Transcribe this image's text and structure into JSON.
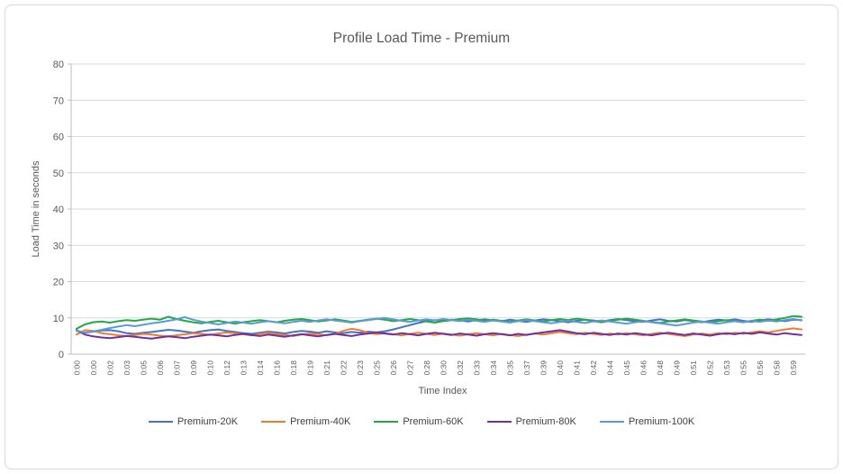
{
  "chart_data": {
    "type": "line",
    "title": "Profile Load Time - Premium",
    "xlabel": "Time Index",
    "ylabel": "Load Time in seconds",
    "ylim": [
      0,
      80
    ],
    "ytick_step": 10,
    "grid": true,
    "legend_position": "bottom",
    "label_every_n_points": 2,
    "x_tick_labels": [
      "0:00",
      "0:00",
      "0:02",
      "0:03",
      "0:05",
      "0:06",
      "0:07",
      "0:09",
      "0:10",
      "0:12",
      "0:13",
      "0:14",
      "0:16",
      "0:18",
      "0:19",
      "0:21",
      "0:22",
      "0:23",
      "0:25",
      "0:26",
      "0:27",
      "0:28",
      "0:30",
      "0:32",
      "0:33",
      "0:34",
      "0:35",
      "0:37",
      "0:39",
      "0:40",
      "0:41",
      "0:42",
      "0:44",
      "0:45",
      "0:46",
      "0:48",
      "0:49",
      "0:51",
      "0:52",
      "0:53",
      "0:55",
      "0:56",
      "0:58",
      "0:59"
    ],
    "colors": {
      "gridline": "#d9d9d9",
      "axis_line": "#bfbfbf",
      "tick_label": "#595959",
      "title": "#595959"
    },
    "series": [
      {
        "name": "Premium-20K",
        "color": "#4472C4",
        "values": [
          6.4,
          5.9,
          6.2,
          6.5,
          6.6,
          6.3,
          5.8,
          5.6,
          5.9,
          6.1,
          6.4,
          6.7,
          6.5,
          6.2,
          5.9,
          6.3,
          6.6,
          6.8,
          6.4,
          6.1,
          5.8,
          5.6,
          5.9,
          6.2,
          6.0,
          5.7,
          6.1,
          6.4,
          6.2,
          5.9,
          6.3,
          6.0,
          5.8,
          6.1,
          5.9,
          6.2,
          6.0,
          6.3,
          6.8,
          7.4,
          8.0,
          8.6,
          9.1,
          9.4,
          9.2,
          9.5,
          9.3,
          9.0,
          9.4,
          9.6,
          9.3,
          9.1,
          9.5,
          9.2,
          8.9,
          9.3,
          9.6,
          9.4,
          9.1,
          8.8,
          9.2,
          9.5,
          9.3,
          9.0,
          9.4,
          9.7,
          9.4,
          9.1,
          8.9,
          9.3,
          9.6,
          9.2,
          9.0,
          9.4,
          9.1,
          8.8,
          9.2,
          9.5,
          9.3,
          9.6,
          9.2,
          8.9,
          9.3,
          9.6,
          9.4,
          9.1,
          9.5,
          9.4
        ]
      },
      {
        "name": "Premium-40K",
        "color": "#ED7D31",
        "values": [
          5.4,
          6.6,
          6.4,
          5.8,
          5.5,
          5.2,
          5.0,
          5.3,
          5.6,
          5.4,
          5.1,
          4.9,
          5.2,
          5.5,
          5.8,
          5.6,
          5.3,
          5.7,
          6.0,
          5.8,
          5.5,
          5.2,
          5.6,
          5.9,
          5.6,
          5.3,
          5.0,
          5.4,
          5.7,
          5.5,
          5.2,
          5.6,
          6.4,
          7.0,
          6.6,
          5.9,
          5.5,
          5.8,
          5.5,
          5.2,
          5.6,
          5.9,
          5.6,
          5.3,
          5.7,
          5.4,
          5.1,
          5.5,
          5.8,
          5.5,
          5.2,
          5.6,
          5.3,
          5.0,
          5.4,
          5.7,
          5.4,
          5.8,
          6.1,
          5.8,
          5.5,
          5.9,
          5.6,
          5.3,
          5.7,
          5.4,
          5.8,
          5.5,
          5.2,
          5.6,
          5.9,
          5.6,
          5.3,
          5.0,
          5.4,
          5.7,
          5.4,
          5.8,
          5.5,
          5.9,
          5.6,
          6.0,
          6.3,
          6.0,
          6.4,
          6.8,
          7.1,
          6.8
        ]
      },
      {
        "name": "Premium-60K",
        "color": "#23A946",
        "values": [
          7.0,
          8.2,
          8.8,
          9.0,
          8.7,
          9.1,
          9.4,
          9.2,
          9.5,
          9.8,
          9.5,
          10.3,
          9.7,
          9.2,
          8.8,
          8.5,
          8.9,
          9.2,
          8.8,
          8.4,
          8.8,
          9.1,
          9.4,
          9.1,
          8.8,
          9.2,
          9.5,
          9.7,
          9.4,
          9.0,
          9.3,
          9.6,
          9.3,
          8.9,
          9.2,
          9.5,
          9.8,
          9.5,
          9.1,
          9.4,
          9.7,
          9.4,
          9.0,
          8.7,
          9.1,
          9.4,
          9.7,
          9.9,
          9.6,
          9.2,
          9.5,
          9.2,
          8.9,
          9.3,
          9.6,
          9.3,
          9.0,
          9.4,
          9.7,
          9.4,
          9.8,
          9.5,
          9.1,
          8.8,
          9.2,
          9.5,
          9.8,
          9.5,
          9.2,
          8.9,
          8.6,
          9.0,
          9.3,
          9.6,
          9.3,
          9.0,
          8.7,
          9.1,
          9.4,
          9.1,
          8.8,
          9.2,
          9.5,
          9.2,
          9.6,
          10.0,
          10.5,
          10.3
        ]
      },
      {
        "name": "Premium-80K",
        "color": "#7030A0",
        "values": [
          6.6,
          5.4,
          4.9,
          4.6,
          4.4,
          4.7,
          5.0,
          4.8,
          4.5,
          4.3,
          4.6,
          4.9,
          4.7,
          4.4,
          4.8,
          5.1,
          5.4,
          5.2,
          4.9,
          5.3,
          5.6,
          5.3,
          5.0,
          5.4,
          5.1,
          4.8,
          5.2,
          5.5,
          5.2,
          4.9,
          5.3,
          5.6,
          5.3,
          5.0,
          5.4,
          5.7,
          6.0,
          5.7,
          5.4,
          5.8,
          5.5,
          5.2,
          5.6,
          5.9,
          5.6,
          5.3,
          5.7,
          5.4,
          5.1,
          5.5,
          5.8,
          5.5,
          5.2,
          5.6,
          5.3,
          5.7,
          6.0,
          6.3,
          6.6,
          6.2,
          5.8,
          5.5,
          5.9,
          5.6,
          5.3,
          5.7,
          5.4,
          5.8,
          5.5,
          5.2,
          5.6,
          5.9,
          5.6,
          5.3,
          5.7,
          5.4,
          5.1,
          5.5,
          5.8,
          5.5,
          5.9,
          5.6,
          6.0,
          5.7,
          5.4,
          5.8,
          5.5,
          5.3
        ]
      },
      {
        "name": "Premium-100K",
        "color": "#5B9BD5",
        "values": [
          6.5,
          5.9,
          6.3,
          6.7,
          7.2,
          7.6,
          8.0,
          7.7,
          8.1,
          8.5,
          8.8,
          9.2,
          9.6,
          10.2,
          9.5,
          9.0,
          8.6,
          8.2,
          8.6,
          9.0,
          8.7,
          8.4,
          8.8,
          9.1,
          8.8,
          8.5,
          8.9,
          9.2,
          8.9,
          9.3,
          9.6,
          9.3,
          9.0,
          8.7,
          9.1,
          9.4,
          9.7,
          10.0,
          9.6,
          9.2,
          8.9,
          9.3,
          9.6,
          9.3,
          9.7,
          9.4,
          9.1,
          9.5,
          9.2,
          8.9,
          9.3,
          9.0,
          8.7,
          9.1,
          9.4,
          9.1,
          8.8,
          8.5,
          8.9,
          9.2,
          8.9,
          8.6,
          9.0,
          9.3,
          9.0,
          8.7,
          8.4,
          8.8,
          9.1,
          8.8,
          8.5,
          8.2,
          7.9,
          8.3,
          8.7,
          9.0,
          8.7,
          8.4,
          8.8,
          9.1,
          8.8,
          9.2,
          8.9,
          9.3,
          9.0,
          9.4,
          9.7,
          9.3
        ]
      }
    ]
  }
}
